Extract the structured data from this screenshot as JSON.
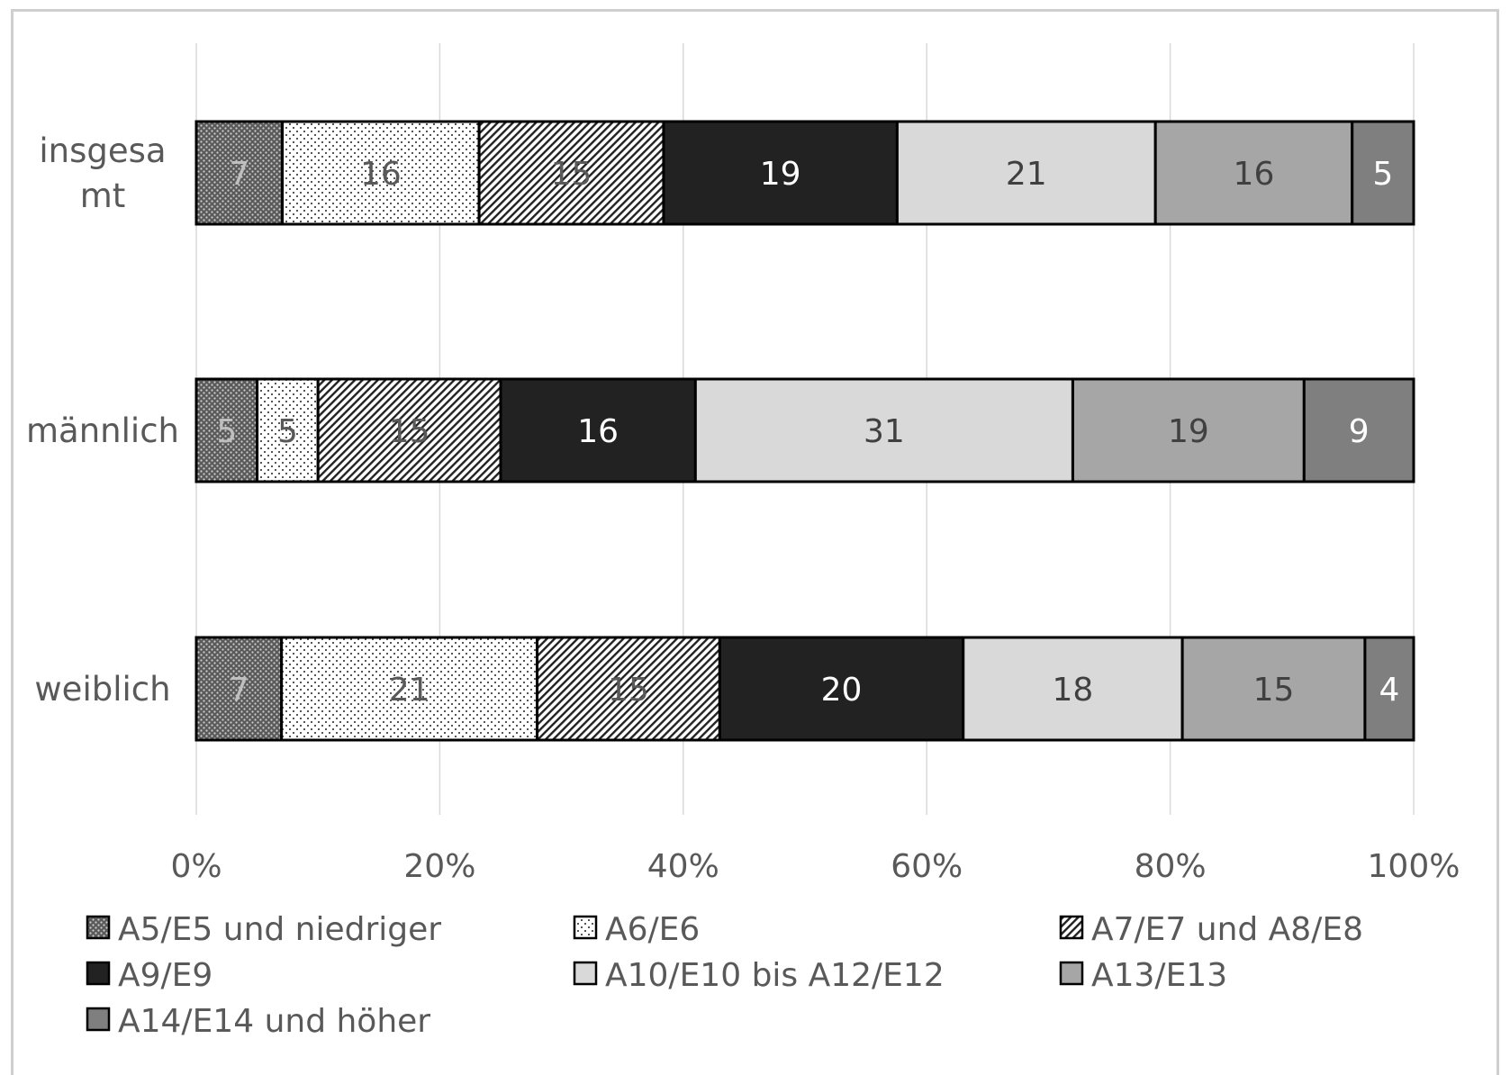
{
  "chart_data": {
    "type": "bar",
    "orientation": "horizontal",
    "stacked": true,
    "percent_stacked": true,
    "title": "",
    "xlabel": "",
    "ylabel": "",
    "xlim": [
      0,
      100
    ],
    "grid": true,
    "legend_position": "bottom",
    "x_ticks": [
      "0%",
      "20%",
      "40%",
      "60%",
      "80%",
      "100%"
    ],
    "categories": [
      "insgesamt",
      "männlich",
      "weiblich"
    ],
    "category_labels": [
      [
        "insgesa",
        "mt"
      ],
      [
        "männlich"
      ],
      [
        "weiblich"
      ]
    ],
    "series": [
      {
        "name": "A5/E5 und niedriger",
        "values": [
          7,
          5,
          7
        ],
        "fill": "#555555",
        "pattern": "crosshatch-dots",
        "label_color": "#bfbfbf"
      },
      {
        "name": "A6/E6",
        "values": [
          16,
          5,
          21
        ],
        "fill": "#ffffff",
        "pattern": "dots",
        "label_color": "#595959"
      },
      {
        "name": "A7/E7 und A8/E8",
        "values": [
          15,
          15,
          15
        ],
        "fill": "#ffffff",
        "pattern": "diagonal",
        "label_color": "#595959"
      },
      {
        "name": "A9/E9",
        "values": [
          19,
          16,
          20
        ],
        "fill": "#222222",
        "pattern": "solid",
        "label_color": "#ffffff"
      },
      {
        "name": "A10/E10 bis A12/E12",
        "values": [
          21,
          31,
          18
        ],
        "fill": "#d9d9d9",
        "pattern": "solid",
        "label_color": "#404040"
      },
      {
        "name": "A13/E13",
        "values": [
          16,
          19,
          15
        ],
        "fill": "#a6a6a6",
        "pattern": "solid",
        "label_color": "#404040"
      },
      {
        "name": "A14/E14 und höher",
        "values": [
          5,
          9,
          4
        ],
        "fill": "#7f7f7f",
        "pattern": "solid",
        "label_color": "#ffffff"
      }
    ]
  }
}
